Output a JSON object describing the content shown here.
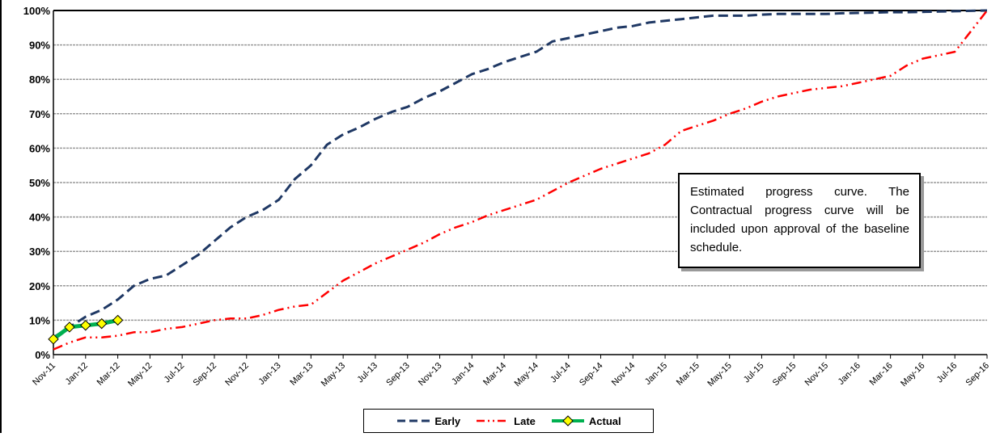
{
  "colors": {
    "early": "#1f3864",
    "late": "#ff0000",
    "actual": "#00b050",
    "actual_marker": "#ffff00",
    "grid": "#999999"
  },
  "annotation": "Estimated progress curve.  The Contractual progress curve will be included upon approval of the baseline schedule.",
  "legend": {
    "placement": "bottom-center",
    "early_label": "Early",
    "late_label": "Late",
    "actual_label": "Actual"
  },
  "chart_data": {
    "type": "line",
    "title": "",
    "xlabel": "",
    "ylabel": "",
    "ylim": [
      0,
      100
    ],
    "y_ticks": [
      "0%",
      "10%",
      "20%",
      "30%",
      "40%",
      "50%",
      "60%",
      "70%",
      "80%",
      "90%",
      "100%"
    ],
    "x_ticks": [
      "Nov-11",
      "Jan-12",
      "Mar-12",
      "May-12",
      "Jul-12",
      "Sep-12",
      "Nov-12",
      "Jan-13",
      "Mar-13",
      "May-13",
      "Jul-13",
      "Sep-13",
      "Nov-13",
      "Jan-14",
      "Mar-14",
      "May-14",
      "Jul-14",
      "Sep-14",
      "Nov-14",
      "Jan-15",
      "Mar-15",
      "May-15",
      "Jul-15",
      "Sep-15",
      "Nov-15",
      "Jan-16",
      "Mar-16",
      "May-16",
      "Jul-16",
      "Sep-16"
    ],
    "grid": true,
    "series": [
      {
        "name": "Early",
        "style": "dashed",
        "x": [
          "Nov-11",
          "Dec-11",
          "Jan-12",
          "Feb-12",
          "Mar-12",
          "Apr-12",
          "May-12",
          "Jun-12",
          "Jul-12",
          "Aug-12",
          "Sep-12",
          "Oct-12",
          "Nov-12",
          "Dec-12",
          "Jan-13",
          "Feb-13",
          "Mar-13",
          "Apr-13",
          "May-13",
          "Jun-13",
          "Jul-13",
          "Aug-13",
          "Sep-13",
          "Oct-13",
          "Nov-13",
          "Dec-13",
          "Jan-14",
          "Feb-14",
          "Mar-14",
          "Apr-14",
          "May-14",
          "Jun-14",
          "Jul-14",
          "Aug-14",
          "Sep-14",
          "Oct-14",
          "Nov-14",
          "Dec-14",
          "Jan-15",
          "Feb-15",
          "Mar-15",
          "Apr-15",
          "May-15",
          "Jun-15",
          "Jul-15",
          "Aug-15",
          "Sep-15",
          "Oct-15",
          "Nov-15",
          "Dec-15",
          "Jan-16",
          "Feb-16",
          "Mar-16",
          "Apr-16",
          "May-16",
          "Jun-16",
          "Jul-16",
          "Aug-16",
          "Sep-16"
        ],
        "values": [
          5,
          8,
          11,
          13,
          16,
          20,
          22,
          23,
          26,
          29,
          33,
          37,
          40,
          42,
          45,
          51,
          55,
          61,
          64,
          66,
          68.5,
          70.5,
          72,
          74.5,
          76.5,
          79,
          81.5,
          83,
          85,
          86.5,
          88,
          91,
          92,
          93,
          94,
          95,
          95.5,
          96.5,
          97,
          97.5,
          98,
          98.5,
          98.5,
          98.5,
          98.8,
          99,
          99,
          99,
          99,
          99.2,
          99.3,
          99.4,
          99.5,
          99.5,
          99.6,
          99.7,
          99.8,
          99.9,
          100
        ]
      },
      {
        "name": "Late",
        "style": "dash-dot-dot",
        "x": [
          "Nov-11",
          "Dec-11",
          "Jan-12",
          "Feb-12",
          "Mar-12",
          "Apr-12",
          "May-12",
          "Jun-12",
          "Jul-12",
          "Aug-12",
          "Sep-12",
          "Oct-12",
          "Nov-12",
          "Dec-12",
          "Jan-13",
          "Feb-13",
          "Mar-13",
          "Apr-13",
          "May-13",
          "Jun-13",
          "Jul-13",
          "Aug-13",
          "Sep-13",
          "Oct-13",
          "Nov-13",
          "Dec-13",
          "Jan-14",
          "Feb-14",
          "Mar-14",
          "Apr-14",
          "May-14",
          "Jun-14",
          "Jul-14",
          "Aug-14",
          "Sep-14",
          "Oct-14",
          "Nov-14",
          "Dec-14",
          "Jan-15",
          "Feb-15",
          "Mar-15",
          "Apr-15",
          "May-15",
          "Jun-15",
          "Jul-15",
          "Aug-15",
          "Sep-15",
          "Oct-15",
          "Nov-15",
          "Dec-15",
          "Jan-16",
          "Feb-16",
          "Mar-16",
          "Apr-16",
          "May-16",
          "Jun-16",
          "Jul-16",
          "Aug-16",
          "Sep-16"
        ],
        "values": [
          1.5,
          3.5,
          5,
          5,
          5.5,
          6.5,
          6.5,
          7.5,
          8,
          9,
          10,
          10.5,
          10.5,
          11.5,
          13,
          14,
          14.5,
          18,
          21.5,
          24,
          26.5,
          28.5,
          30.5,
          32.5,
          35,
          37,
          38.5,
          40.5,
          42,
          43.5,
          45,
          47.5,
          50,
          52,
          54,
          55.5,
          57,
          58.5,
          61,
          65,
          66.5,
          68,
          70,
          71.5,
          73.5,
          75,
          76,
          77,
          77.5,
          78,
          79,
          80,
          81,
          84,
          86,
          87,
          88,
          94,
          100
        ]
      },
      {
        "name": "Actual",
        "style": "solid-markers",
        "x": [
          "Nov-11",
          "Dec-11",
          "Jan-12",
          "Feb-12",
          "Mar-12"
        ],
        "values": [
          4.5,
          8,
          8.5,
          9,
          10
        ]
      }
    ]
  }
}
